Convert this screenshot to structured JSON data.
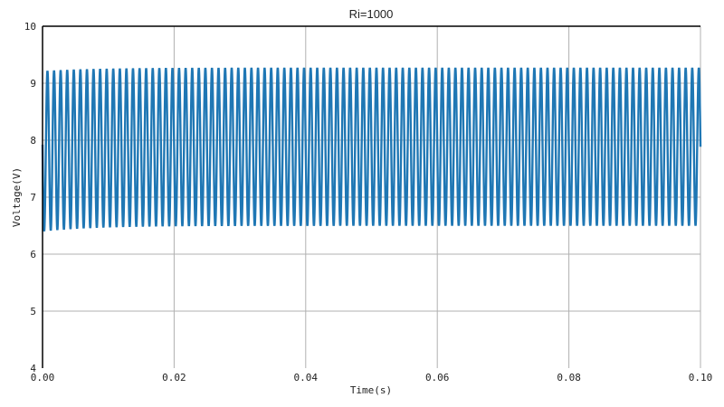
{
  "chart_data": {
    "type": "line",
    "title": "Ri=1000",
    "xlabel": "Time(s)",
    "ylabel": "Voltage(V)",
    "xlim": [
      0,
      0.1
    ],
    "ylim": [
      4,
      10
    ],
    "xticks": [
      "0.00",
      "0.02",
      "0.04",
      "0.06",
      "0.08",
      "0.10"
    ],
    "yticks": [
      "4",
      "5",
      "6",
      "7",
      "8",
      "9",
      "10"
    ],
    "grid": true,
    "line_color": "#1f77b4",
    "grid_color": "#b0b0b0",
    "series": [
      {
        "description_signal": "sinusoid",
        "frequency_hz": 1000,
        "steady_max_V": 9.27,
        "steady_min_V": 6.5,
        "initial_max_V": 9.21,
        "initial_min_V": 6.4,
        "start_V": 8.0,
        "end_V": 8.0
      }
    ]
  }
}
